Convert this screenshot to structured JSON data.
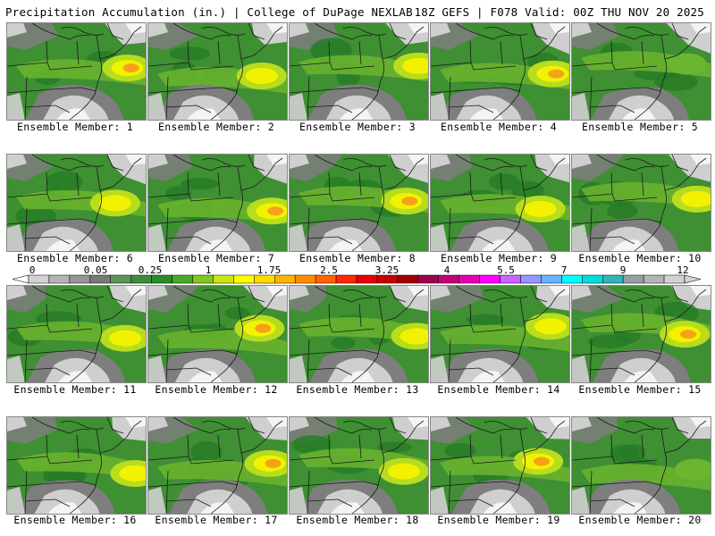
{
  "header": {
    "left_title": "Precipitation Accumulation (in.) | College of DuPage NEXLAB",
    "right_title": "18Z GEFS | F078 Valid: 00Z THU NOV 20 2025"
  },
  "members": [
    {
      "label": "Ensemble Member: 1",
      "hotspot": "orange"
    },
    {
      "label": "Ensemble Member: 2",
      "hotspot": "yellow"
    },
    {
      "label": "Ensemble Member: 3",
      "hotspot": "yellow"
    },
    {
      "label": "Ensemble Member: 4",
      "hotspot": "orange"
    },
    {
      "label": "Ensemble Member: 5",
      "hotspot": "lightgreen"
    },
    {
      "label": "Ensemble Member: 6",
      "hotspot": "yellow"
    },
    {
      "label": "Ensemble Member: 7",
      "hotspot": "orange"
    },
    {
      "label": "Ensemble Member: 8",
      "hotspot": "orange"
    },
    {
      "label": "Ensemble Member: 9",
      "hotspot": "yellow"
    },
    {
      "label": "Ensemble Member: 10",
      "hotspot": "yellow"
    },
    {
      "label": "Ensemble Member: 11",
      "hotspot": "yellow"
    },
    {
      "label": "Ensemble Member: 12",
      "hotspot": "orange"
    },
    {
      "label": "Ensemble Member: 13",
      "hotspot": "yellow"
    },
    {
      "label": "Ensemble Member: 14",
      "hotspot": "yellow"
    },
    {
      "label": "Ensemble Member: 15",
      "hotspot": "orange"
    },
    {
      "label": "Ensemble Member: 16",
      "hotspot": "yellow"
    },
    {
      "label": "Ensemble Member: 17",
      "hotspot": "orange"
    },
    {
      "label": "Ensemble Member: 18",
      "hotspot": "yellow"
    },
    {
      "label": "Ensemble Member: 19",
      "hotspot": "orange"
    },
    {
      "label": "Ensemble Member: 20",
      "hotspot": "lightgreen"
    }
  ],
  "colorbar": {
    "labels": [
      "0",
      "0.05",
      "0.25",
      "1",
      "1.75",
      "2.5",
      "3.25",
      "4",
      "5.5",
      "7",
      "9",
      "12"
    ],
    "colors": [
      "#d2d2d2",
      "#b4b4b4",
      "#969696",
      "#787878",
      "#5a965a",
      "#3c8c3c",
      "#288c28",
      "#46aa28",
      "#82c81e",
      "#c8e614",
      "#ffff00",
      "#ffdc00",
      "#ffb400",
      "#ff8c00",
      "#ff6400",
      "#ff2800",
      "#e60000",
      "#c80000",
      "#a00000",
      "#a00050",
      "#c80078",
      "#e600b4",
      "#ff00ff",
      "#c864ff",
      "#9696ff",
      "#64b4ff",
      "#00ffff",
      "#00dcdc",
      "#32b4b4",
      "#96a0a0",
      "#b4b4b4",
      "#d2d2d2"
    ]
  },
  "colors": {
    "land_green": "#3f8f33",
    "dark_green": "#267a26",
    "light_green": "#6cb52e",
    "yellow_green": "#b8dc1e",
    "yellow": "#f2f200",
    "orange": "#f5a21a",
    "gray_dark": "#7e7e7e",
    "gray_light": "#cfcfcf",
    "white": "#f4f4f4",
    "border": "#1a1a1a"
  }
}
